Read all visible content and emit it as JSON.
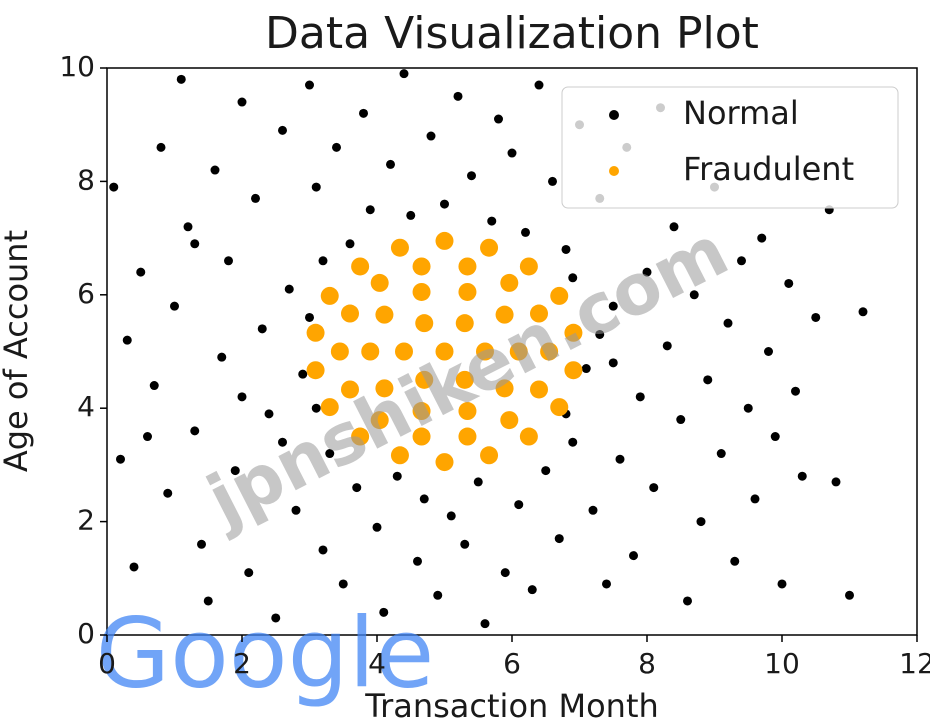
{
  "chart_data": {
    "type": "scatter",
    "title": "Data Visualization Plot",
    "x_label": "Transaction Month",
    "y_label": "Age of Account",
    "xlim": [
      0,
      12
    ],
    "ylim": [
      0,
      10
    ],
    "xticks": [
      0,
      2,
      4,
      6,
      8,
      10,
      12
    ],
    "yticks": [
      0,
      2,
      4,
      6,
      8,
      10
    ],
    "legend": "upper right",
    "annotations": [
      "jpnshiken.com",
      "Google"
    ],
    "series": [
      {
        "name": "Normal",
        "color": "#000000",
        "x": [
          0.1,
          0.3,
          0.2,
          0.5,
          0.4,
          0.8,
          0.7,
          0.9,
          1.1,
          1.2,
          1.0,
          1.3,
          1.4,
          1.5,
          1.6,
          1.8,
          1.7,
          1.9,
          2.0,
          2.1,
          2.2,
          2.3,
          2.4,
          2.5,
          2.6,
          2.7,
          2.8,
          2.9,
          3.0,
          3.1,
          3.2,
          3.3,
          3.4,
          3.5,
          3.6,
          3.7,
          3.8,
          3.9,
          4.0,
          4.1,
          4.2,
          4.3,
          4.4,
          4.5,
          4.6,
          4.7,
          4.8,
          4.9,
          5.0,
          5.1,
          5.2,
          5.3,
          5.4,
          5.5,
          5.6,
          5.7,
          5.8,
          5.9,
          6.0,
          6.1,
          6.2,
          6.3,
          6.4,
          6.5,
          6.6,
          6.7,
          6.8,
          6.9,
          7.0,
          7.1,
          7.2,
          7.3,
          7.4,
          7.5,
          7.6,
          7.7,
          7.8,
          7.9,
          8.0,
          8.1,
          8.2,
          8.3,
          8.4,
          8.5,
          8.6,
          8.7,
          8.8,
          8.9,
          9.0,
          9.1,
          9.2,
          9.3,
          9.4,
          9.5,
          9.6,
          9.7,
          9.8,
          9.9,
          10.0,
          10.1,
          10.2,
          10.3,
          10.5,
          10.8,
          11.0,
          11.2,
          10.7,
          2.0,
          3.0,
          2.6,
          3.1,
          7.3,
          6.8,
          7.5,
          3.2,
          6.9,
          1.3,
          0.6
        ],
        "y": [
          7.9,
          5.2,
          3.1,
          6.4,
          1.2,
          8.6,
          4.4,
          2.5,
          9.8,
          7.2,
          5.8,
          3.6,
          1.6,
          0.6,
          8.2,
          6.6,
          4.9,
          2.9,
          9.4,
          1.1,
          7.7,
          5.4,
          3.9,
          0.3,
          8.9,
          6.1,
          2.2,
          4.6,
          9.7,
          7.9,
          1.5,
          3.2,
          8.6,
          0.9,
          6.9,
          2.6,
          9.2,
          7.5,
          1.9,
          0.4,
          8.3,
          2.8,
          9.9,
          7.4,
          1.3,
          2.4,
          8.8,
          0.7,
          7.6,
          2.1,
          9.5,
          1.6,
          8.1,
          2.7,
          0.2,
          7.3,
          9.1,
          1.1,
          8.5,
          2.3,
          7.1,
          0.8,
          9.7,
          2.9,
          8.0,
          1.7,
          6.8,
          3.4,
          9.0,
          4.7,
          2.2,
          7.7,
          0.9,
          5.8,
          3.1,
          8.6,
          1.4,
          4.2,
          6.4,
          2.6,
          9.3,
          5.1,
          7.2,
          3.8,
          0.6,
          6.0,
          2.0,
          4.5,
          7.9,
          3.2,
          5.5,
          1.3,
          6.6,
          4.0,
          2.4,
          7.0,
          5.0,
          3.5,
          0.9,
          6.2,
          4.3,
          2.8,
          5.6,
          2.7,
          0.7,
          5.7,
          7.5,
          4.2,
          5.6,
          3.4,
          4.0,
          5.3,
          3.9,
          4.8,
          6.6,
          6.3,
          6.9,
          3.5
        ]
      },
      {
        "name": "Fraudulent",
        "color": "#ffa500",
        "x": [
          5,
          5.6,
          5.3,
          4.7,
          4.4,
          4.7,
          5.3,
          6.1,
          5.89,
          5.34,
          4.66,
          4.11,
          3.9,
          4.11,
          4.66,
          5.34,
          5.89,
          6.55,
          6.4,
          5.96,
          5.34,
          4.66,
          4.04,
          3.6,
          3.45,
          3.6,
          4.04,
          4.66,
          5.34,
          5.96,
          6.4,
          6.91,
          6.7,
          6.25,
          5.66,
          5,
          4.34,
          3.75,
          3.3,
          3.09,
          3.09,
          3.3,
          3.75,
          4.34,
          5,
          5.66,
          6.25,
          6.7,
          6.91
        ],
        "y": [
          5,
          5,
          5.5,
          5.5,
          5,
          4.5,
          4.5,
          5,
          5.65,
          6.05,
          6.05,
          5.65,
          5,
          4.35,
          3.95,
          3.95,
          4.35,
          5,
          5.67,
          6.21,
          6.5,
          6.5,
          6.21,
          5.67,
          5,
          4.33,
          3.79,
          3.5,
          3.5,
          3.79,
          4.33,
          5.33,
          5.98,
          6.5,
          6.83,
          6.95,
          6.83,
          6.5,
          5.98,
          5.33,
          4.67,
          4.02,
          3.5,
          3.17,
          3.05,
          3.17,
          3.5,
          4.02,
          4.67
        ]
      }
    ]
  }
}
